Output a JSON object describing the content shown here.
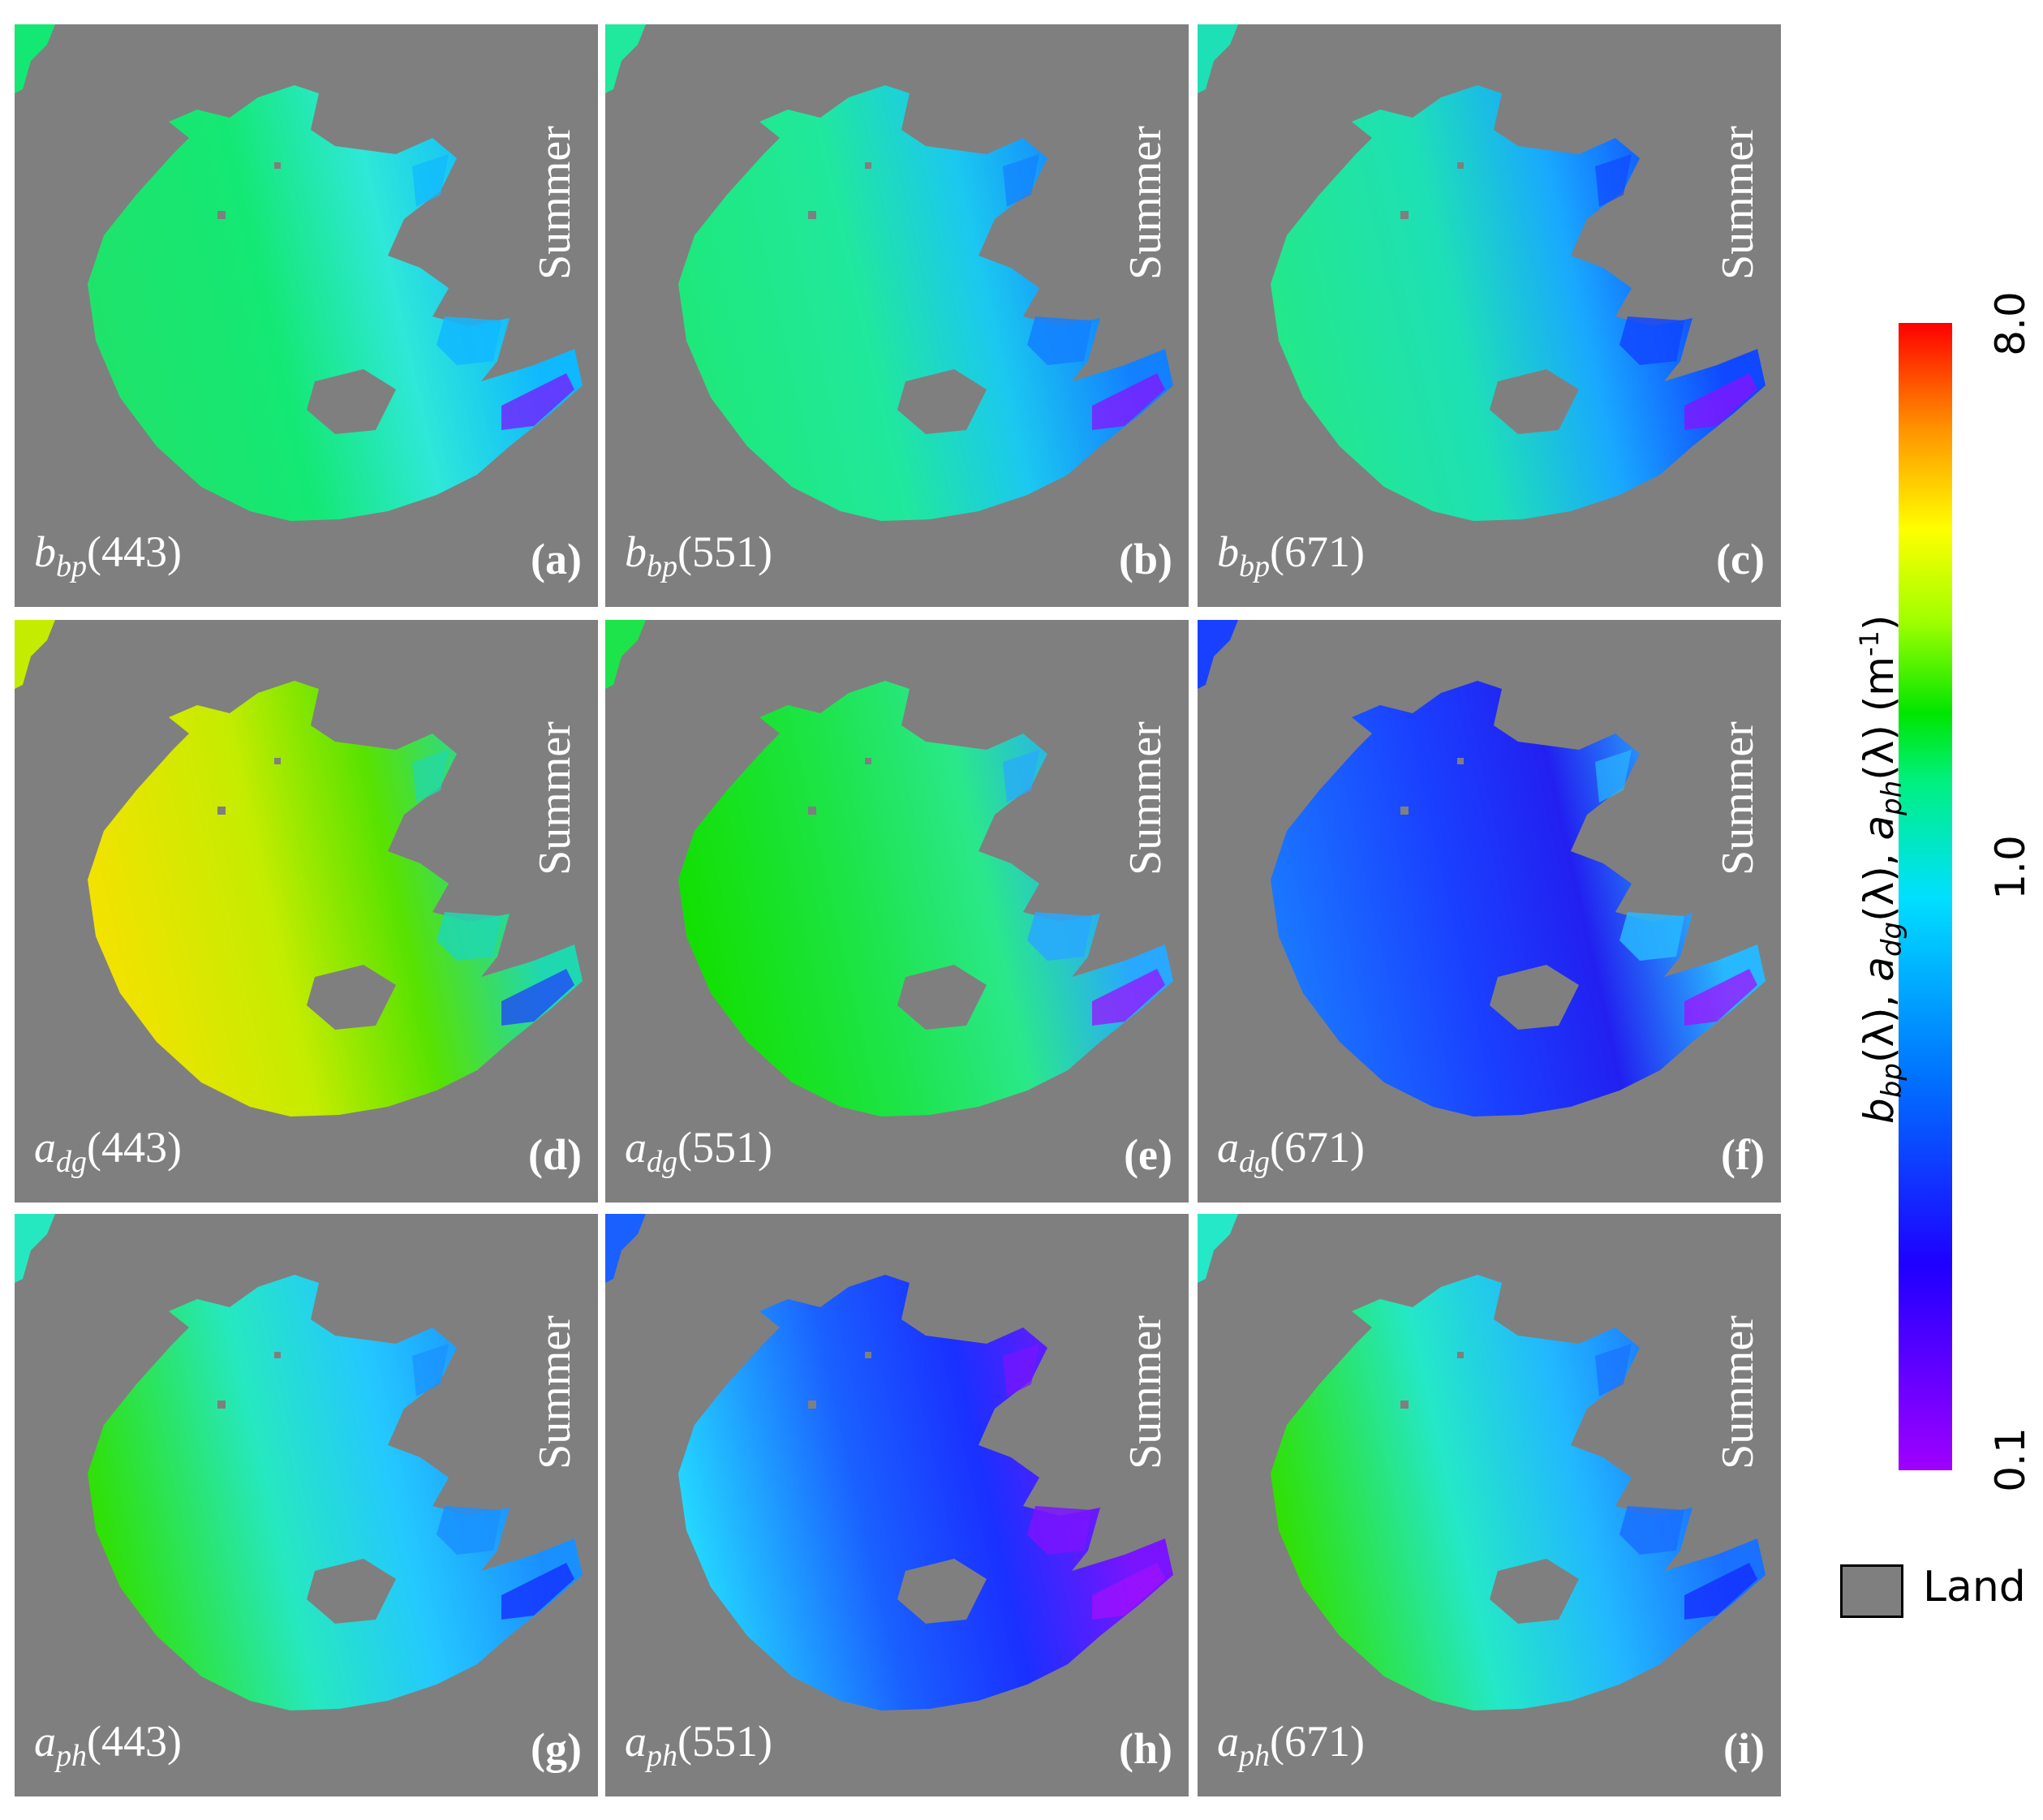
{
  "season": "Summer",
  "colorbar": {
    "title_parts": [
      "b",
      "bp",
      "(λ), ",
      "a",
      "dg",
      "(λ), ",
      "a",
      "ph",
      "(λ) (m",
      "-1",
      ")"
    ],
    "ticks": [
      "8.0",
      "1.0",
      "0.1"
    ],
    "colors": [
      "#a000ff",
      "#1e00ff",
      "#0070ff",
      "#00e0ff",
      "#00e600",
      "#ffff00",
      "#ff0000"
    ]
  },
  "legend": {
    "label": "Land",
    "land_color": "#7f7f7f"
  },
  "panels": [
    {
      "var": "b",
      "sub": "bp",
      "wl": "(443)",
      "letter": "(a)",
      "colors": [
        "#1fe36a",
        "#14e874",
        "#2ee8d8",
        "#10b8ff",
        "#7b14ff"
      ]
    },
    {
      "var": "b",
      "sub": "bp",
      "wl": "(551)",
      "letter": "(b)",
      "colors": [
        "#1ee87a",
        "#20e89c",
        "#1bc8f0",
        "#1380ff",
        "#8a10ff"
      ]
    },
    {
      "var": "b",
      "sub": "bp",
      "wl": "(671)",
      "letter": "(c)",
      "colors": [
        "#23e88a",
        "#1ee0b6",
        "#19a8ff",
        "#1048ff",
        "#8a10ff"
      ]
    },
    {
      "var": "a",
      "sub": "dg",
      "wl": "(443)",
      "letter": "(d)",
      "colors": [
        "#f4e200",
        "#c4ec00",
        "#58e200",
        "#20d8b0",
        "#1f40ff"
      ]
    },
    {
      "var": "a",
      "sub": "dg",
      "wl": "(551)",
      "letter": "(e)",
      "colors": [
        "#12e000",
        "#1de44a",
        "#2ae88a",
        "#28a8ff",
        "#9a10ff"
      ]
    },
    {
      "var": "a",
      "sub": "dg",
      "wl": "(671)",
      "letter": "(f)",
      "colors": [
        "#1a78ff",
        "#1a40ff",
        "#2220f0",
        "#28b8ff",
        "#a010ff"
      ]
    },
    {
      "var": "a",
      "sub": "ph",
      "wl": "(443)",
      "letter": "(g)",
      "colors": [
        "#30e000",
        "#26e8c0",
        "#24c8ff",
        "#1a90ff",
        "#1428ff"
      ]
    },
    {
      "var": "a",
      "sub": "ph",
      "wl": "(551)",
      "letter": "(h)",
      "colors": [
        "#24d8ff",
        "#1a60ff",
        "#1a30ff",
        "#7a14ff",
        "#a010ff"
      ]
    },
    {
      "var": "a",
      "sub": "ph",
      "wl": "(671)",
      "letter": "(i)",
      "colors": [
        "#30e000",
        "#24e8c8",
        "#22b8ff",
        "#1a70ff",
        "#1428ff"
      ]
    }
  ]
}
